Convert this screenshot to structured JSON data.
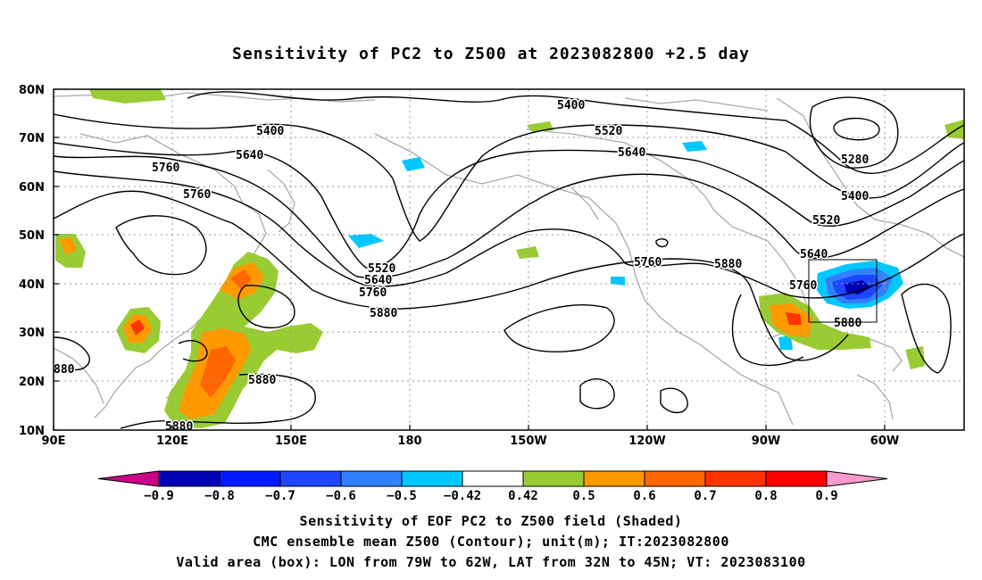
{
  "title": "Sensitivity of PC2 to Z500 at 2023082800 +2.5 day",
  "map": {
    "lat_ticks": [
      "80N",
      "70N",
      "60N",
      "50N",
      "40N",
      "30N",
      "20N",
      "10N"
    ],
    "lon_ticks": [
      "90E",
      "120E",
      "150E",
      "180",
      "150W",
      "120W",
      "90W",
      "60W"
    ],
    "lon_range_deg_east": [
      90,
      320
    ],
    "lat_range_deg": [
      10,
      80
    ],
    "valid_box": {
      "lon_w": -79,
      "lon_e": -62,
      "lat_s": 32,
      "lat_n": 45
    },
    "contour_labels": [
      "5400",
      "5400",
      "5520",
      "5640",
      "5640",
      "5760",
      "5760",
      "5280",
      "5400",
      "5520",
      "5640",
      "5760",
      "5520",
      "5640",
      "5760",
      "5880",
      "5760",
      "5880",
      "5880",
      "880",
      "5880",
      "5880"
    ]
  },
  "colorbar": {
    "labels": [
      "-0.9",
      "-0.8",
      "-0.7",
      "-0.6",
      "-0.5",
      "-0.42",
      "0.42",
      "0.5",
      "0.6",
      "0.7",
      "0.8",
      "0.9"
    ],
    "colors": [
      "#0000b4",
      "#0019ff",
      "#1f46ff",
      "#3380ff",
      "#00c8ff",
      "#ffffff",
      "#99cc33",
      "#ff9900",
      "#ff6600",
      "#ff3300",
      "#ff0000"
    ],
    "low_end_color": "#cc0088",
    "high_end_color": "#ff99cc"
  },
  "captions": {
    "line1": "Sensitivity of EOF PC2 to Z500 field (Shaded)",
    "line2": "CMC ensemble mean Z500 (Contour); unit(m); IT:2023082800",
    "line3": "Valid area (box): LON from 79W to 62W, LAT from 32N to 45N; VT: 2023083100"
  }
}
